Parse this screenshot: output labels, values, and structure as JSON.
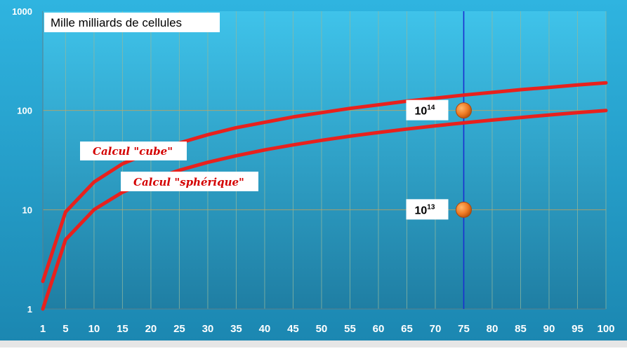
{
  "chart_data": {
    "type": "line",
    "title": "Mille milliards de cellules",
    "xlabel": "",
    "ylabel": "",
    "x_ticks": [
      1,
      5,
      10,
      15,
      20,
      25,
      30,
      35,
      40,
      45,
      50,
      55,
      60,
      65,
      70,
      75,
      80,
      85,
      90,
      95,
      100
    ],
    "xlim": [
      1,
      100
    ],
    "y_scale": "log",
    "ylim": [
      1,
      1000
    ],
    "y_ticks": [
      1,
      10,
      100,
      1000
    ],
    "y_tick_labels": [
      "1",
      "10",
      "100",
      "1000"
    ],
    "grid": true,
    "background_color": "#2a9ec8",
    "line_color": "#e8211d",
    "series": [
      {
        "name": "Calcul \"cube\"",
        "x": [
          1,
          5,
          10,
          15,
          20,
          25,
          30,
          35,
          40,
          45,
          50,
          55,
          60,
          65,
          70,
          75,
          80,
          85,
          90,
          95,
          100
        ],
        "y": [
          1.9,
          9.5,
          19,
          29,
          38,
          47,
          57,
          67,
          76,
          86,
          95,
          105,
          114,
          124,
          133,
          143,
          152,
          162,
          171,
          181,
          190
        ]
      },
      {
        "name": "Calcul \"sphérique\"",
        "x": [
          1,
          5,
          10,
          15,
          20,
          25,
          30,
          35,
          40,
          45,
          50,
          55,
          60,
          65,
          70,
          75,
          80,
          85,
          90,
          95,
          100
        ],
        "y": [
          1,
          5,
          10,
          15,
          20,
          25,
          30,
          35,
          40,
          45,
          50,
          55,
          60,
          65,
          70,
          75,
          80,
          85,
          90,
          95,
          100
        ]
      }
    ],
    "reference_line": {
      "x": 75,
      "color": "#1a2fd0"
    },
    "points": [
      {
        "x": 75,
        "y": 100,
        "label_base": "10",
        "label_exp": "14"
      },
      {
        "x": 75,
        "y": 10,
        "label_base": "10",
        "label_exp": "13"
      }
    ],
    "point_color": "#e8741f"
  }
}
